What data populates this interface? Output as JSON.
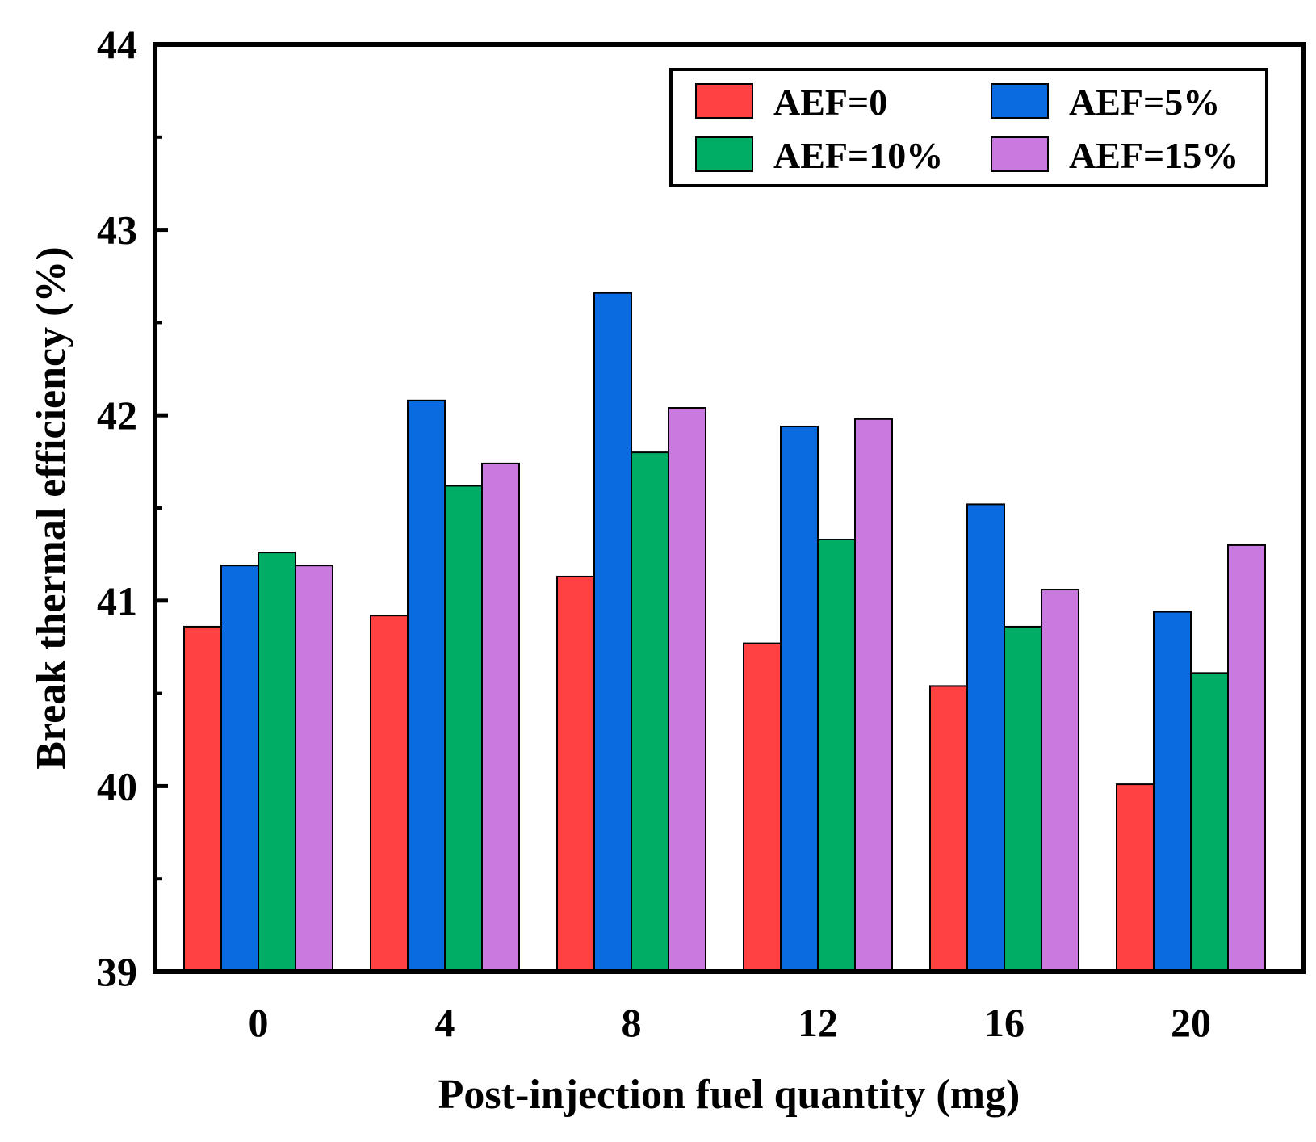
{
  "chart_data": {
    "type": "bar",
    "title": "",
    "xlabel": "Post-injection fuel quantity (mg)",
    "ylabel": "Break thermal efficiency (%)",
    "categories": [
      "0",
      "4",
      "8",
      "12",
      "16",
      "20"
    ],
    "ylim": [
      39,
      44
    ],
    "yticks": [
      "39",
      "40",
      "41",
      "42",
      "43",
      "44"
    ],
    "series": [
      {
        "name": "AEF=0",
        "color": "#ff4141",
        "values": [
          40.86,
          40.92,
          41.13,
          40.77,
          40.54,
          40.01
        ]
      },
      {
        "name": "AEF=5%",
        "color": "#0a6adf",
        "values": [
          41.19,
          42.08,
          42.66,
          41.94,
          41.52,
          40.94
        ]
      },
      {
        "name": "AEF=10%",
        "color": "#00ad65",
        "values": [
          41.26,
          41.62,
          41.8,
          41.33,
          40.86,
          40.61
        ]
      },
      {
        "name": "AEF=15%",
        "color": "#c97ade",
        "values": [
          41.19,
          41.74,
          42.04,
          41.98,
          41.06,
          41.3
        ]
      }
    ],
    "legend": {
      "placement": "top-right",
      "columns": 2
    },
    "grid": false
  }
}
